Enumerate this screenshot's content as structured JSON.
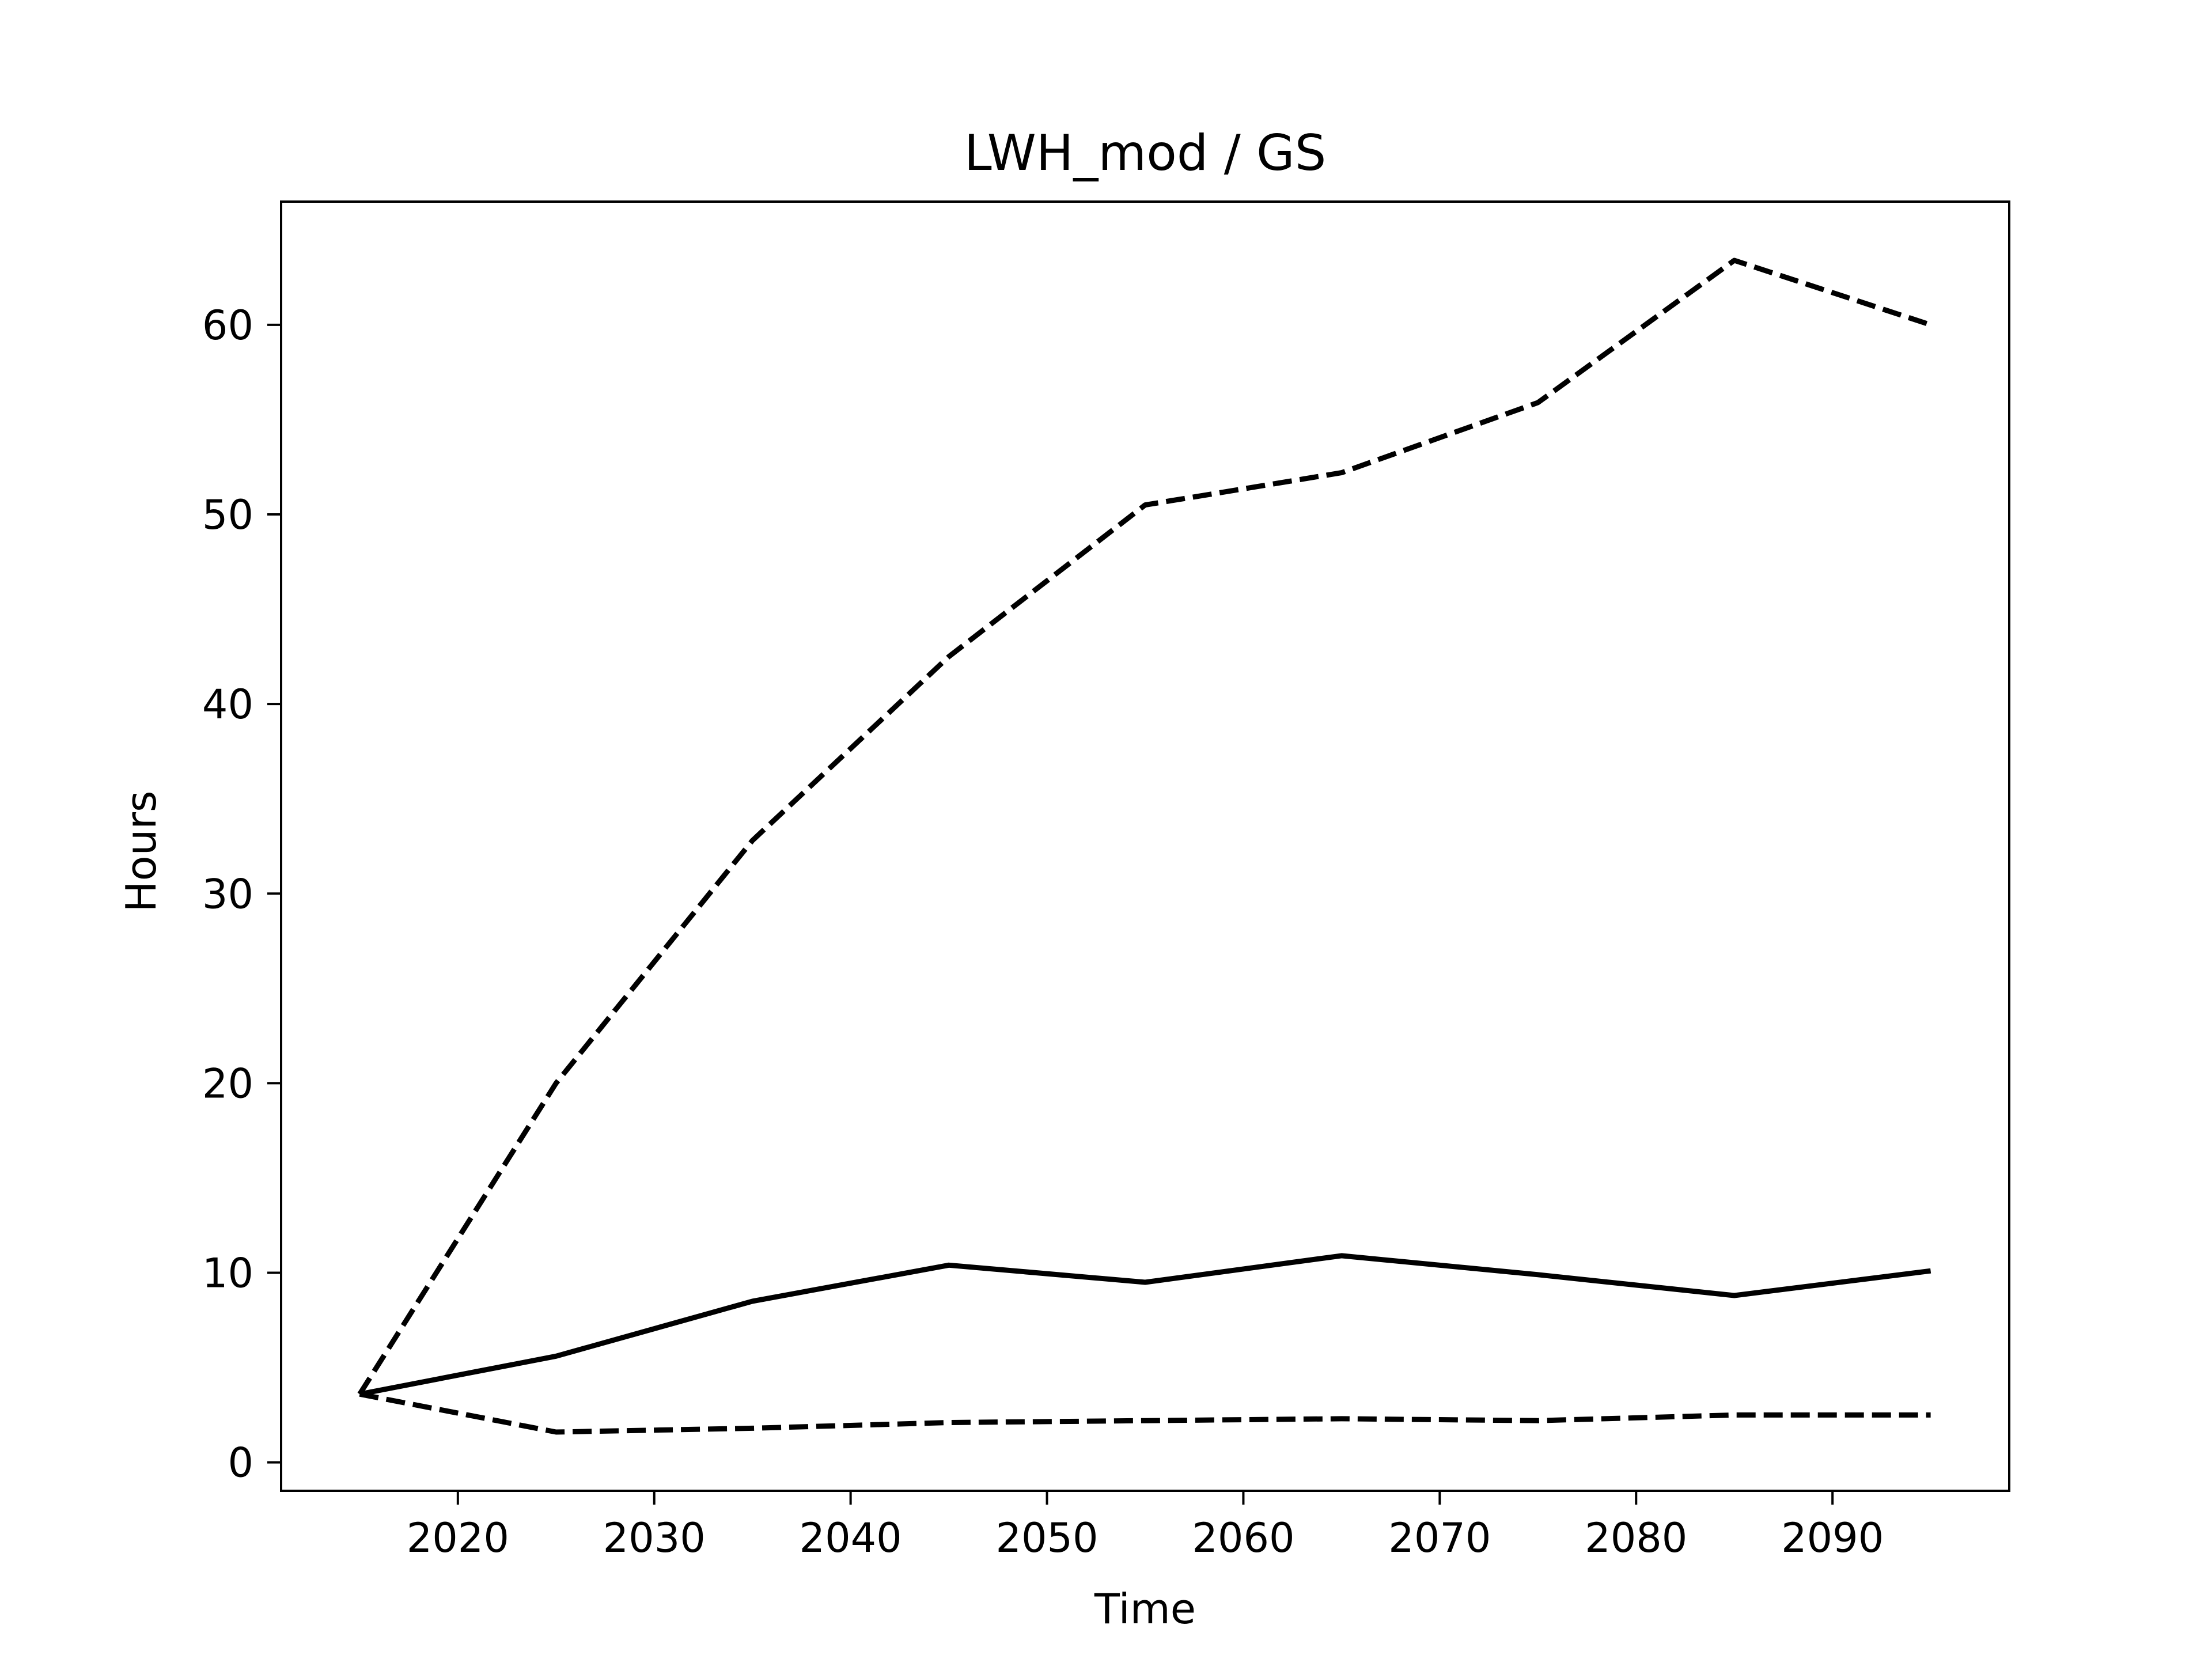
{
  "chart_data": {
    "type": "line",
    "title": "LWH_mod / GS",
    "xlabel": "Time",
    "ylabel": "Hours",
    "xlim": [
      2011,
      2099
    ],
    "ylim": [
      -1.5,
      66.5
    ],
    "xticks": [
      2020,
      2030,
      2040,
      2050,
      2060,
      2070,
      2080,
      2090
    ],
    "yticks": [
      0,
      10,
      20,
      30,
      40,
      50,
      60
    ],
    "grid": false,
    "legend": false,
    "x": [
      2015,
      2025,
      2035,
      2045,
      2055,
      2065,
      2075,
      2085,
      2095
    ],
    "series": [
      {
        "style": "solid",
        "color": "#000000",
        "values": [
          3.6,
          5.6,
          8.5,
          10.4,
          9.5,
          10.9,
          9.9,
          8.8,
          10.1
        ]
      },
      {
        "style": "dashed",
        "color": "#000000",
        "values": [
          3.6,
          20.0,
          32.8,
          42.5,
          50.5,
          52.2,
          55.9,
          63.4,
          60.0
        ]
      },
      {
        "style": "dashed",
        "color": "#000000",
        "values": [
          3.6,
          1.6,
          1.8,
          2.1,
          2.2,
          2.3,
          2.2,
          2.5,
          2.5
        ]
      }
    ]
  }
}
